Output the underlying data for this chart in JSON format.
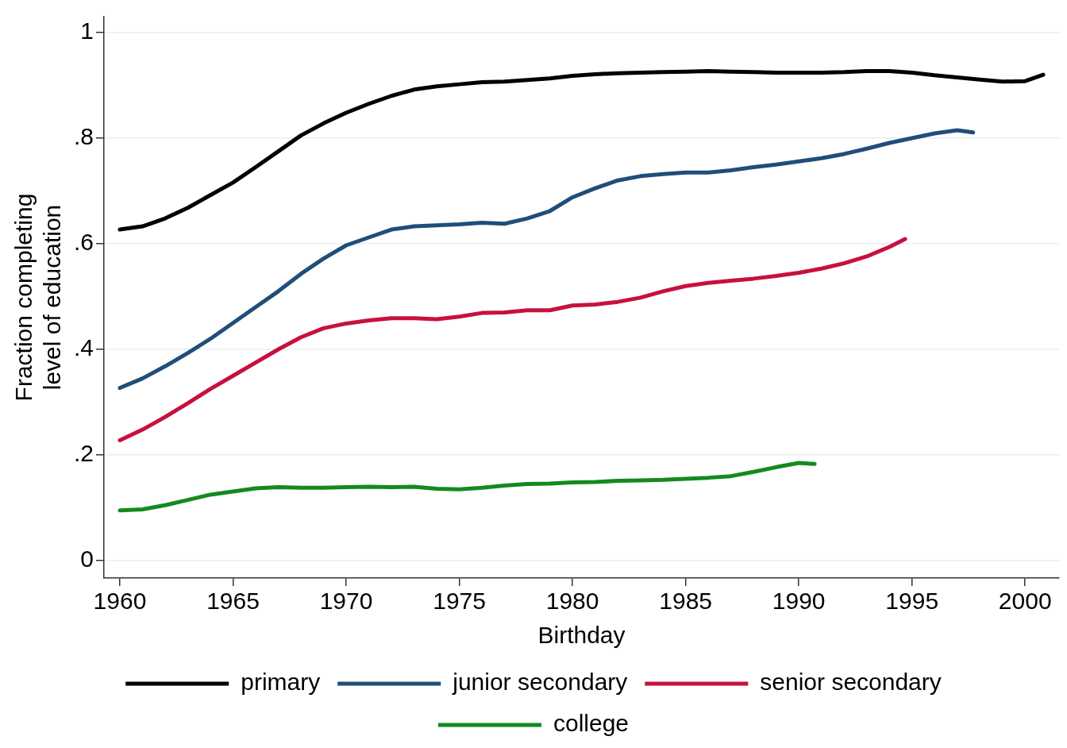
{
  "chart_data": {
    "type": "line",
    "xlabel": "Birthday",
    "ylabel": "Fraction completing\nlevel of education",
    "xlim": [
      1959.3,
      2001.5
    ],
    "xticks": [
      1960,
      1965,
      1970,
      1975,
      1980,
      1985,
      1990,
      1995,
      2000
    ],
    "ylim": [
      -0.033,
      1.03
    ],
    "yticks": [
      0,
      {
        "value": 0.2,
        "label": ".2"
      },
      {
        "value": 0.4,
        "label": ".4"
      },
      {
        "value": 0.6,
        "label": ".6"
      },
      {
        "value": 0.8,
        "label": ".8"
      },
      1
    ],
    "grid": "y",
    "legend": "bottom",
    "marker": "none",
    "line_style": "solid",
    "series": [
      {
        "name": "primary",
        "color": "#000000",
        "x": [
          1960,
          1961,
          1962,
          1963,
          1964,
          1965,
          1966,
          1967,
          1968,
          1969,
          1970,
          1971,
          1972,
          1973,
          1974,
          1975,
          1976,
          1977,
          1978,
          1979,
          1980,
          1981,
          1982,
          1983,
          1984,
          1985,
          1986,
          1987,
          1988,
          1989,
          1990,
          1991,
          1992,
          1993,
          1994,
          1995,
          1996,
          1997,
          1998,
          1999,
          2000,
          2000.8
        ],
        "values": [
          0.627,
          0.633,
          0.648,
          0.668,
          0.692,
          0.716,
          0.745,
          0.775,
          0.805,
          0.828,
          0.848,
          0.865,
          0.88,
          0.892,
          0.898,
          0.902,
          0.906,
          0.907,
          0.91,
          0.913,
          0.918,
          0.921,
          0.923,
          0.924,
          0.925,
          0.926,
          0.927,
          0.926,
          0.925,
          0.924,
          0.924,
          0.924,
          0.925,
          0.927,
          0.927,
          0.924,
          0.919,
          0.915,
          0.911,
          0.907,
          0.908,
          0.92
        ]
      },
      {
        "name": "junior secondary",
        "color": "#1f4e79",
        "x": [
          1960,
          1961,
          1962,
          1963,
          1964,
          1965,
          1966,
          1967,
          1968,
          1969,
          1970,
          1971,
          1972,
          1973,
          1974,
          1975,
          1976,
          1977,
          1978,
          1979,
          1980,
          1981,
          1982,
          1983,
          1984,
          1985,
          1986,
          1987,
          1988,
          1989,
          1990,
          1991,
          1992,
          1993,
          1994,
          1995,
          1996,
          1997,
          1997.7
        ],
        "values": [
          0.327,
          0.345,
          0.368,
          0.393,
          0.42,
          0.45,
          0.48,
          0.51,
          0.543,
          0.572,
          0.597,
          0.612,
          0.627,
          0.633,
          0.635,
          0.637,
          0.64,
          0.638,
          0.648,
          0.662,
          0.688,
          0.705,
          0.72,
          0.728,
          0.732,
          0.735,
          0.735,
          0.739,
          0.745,
          0.75,
          0.756,
          0.762,
          0.77,
          0.78,
          0.791,
          0.8,
          0.809,
          0.815,
          0.811
        ]
      },
      {
        "name": "senior secondary",
        "color": "#c8103e",
        "x": [
          1960,
          1961,
          1962,
          1963,
          1964,
          1965,
          1966,
          1967,
          1968,
          1969,
          1970,
          1971,
          1972,
          1973,
          1974,
          1975,
          1976,
          1977,
          1978,
          1979,
          1980,
          1981,
          1982,
          1983,
          1984,
          1985,
          1986,
          1987,
          1988,
          1989,
          1990,
          1991,
          1992,
          1993,
          1994,
          1994.7
        ],
        "values": [
          0.228,
          0.248,
          0.272,
          0.298,
          0.325,
          0.35,
          0.375,
          0.4,
          0.423,
          0.44,
          0.449,
          0.455,
          0.459,
          0.459,
          0.457,
          0.462,
          0.469,
          0.47,
          0.474,
          0.474,
          0.483,
          0.485,
          0.49,
          0.498,
          0.51,
          0.52,
          0.526,
          0.53,
          0.534,
          0.539,
          0.545,
          0.553,
          0.563,
          0.576,
          0.594,
          0.609
        ]
      },
      {
        "name": "college",
        "color": "#138a1e",
        "x": [
          1960,
          1961,
          1962,
          1963,
          1964,
          1965,
          1966,
          1967,
          1968,
          1969,
          1970,
          1971,
          1972,
          1973,
          1974,
          1975,
          1976,
          1977,
          1978,
          1979,
          1980,
          1981,
          1982,
          1983,
          1984,
          1985,
          1986,
          1987,
          1988,
          1989,
          1990,
          1990.7
        ],
        "values": [
          0.095,
          0.097,
          0.105,
          0.115,
          0.125,
          0.131,
          0.137,
          0.139,
          0.138,
          0.138,
          0.139,
          0.14,
          0.139,
          0.14,
          0.136,
          0.135,
          0.138,
          0.142,
          0.145,
          0.146,
          0.148,
          0.149,
          0.151,
          0.152,
          0.153,
          0.155,
          0.157,
          0.16,
          0.168,
          0.177,
          0.185,
          0.183
        ]
      }
    ]
  }
}
